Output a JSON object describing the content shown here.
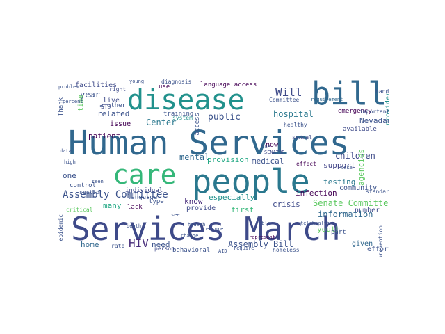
{
  "palette": [
    "#440154",
    "#3b528b",
    "#21918c",
    "#5ec962",
    "#fde725"
  ],
  "words": [
    {
      "text": "Human Services",
      "color": "#31688e"
    },
    {
      "text": "Services March",
      "color": "#3e4a89"
    },
    {
      "text": "people",
      "color": "#2a788e"
    },
    {
      "text": "care",
      "color": "#35b779"
    },
    {
      "text": "disease",
      "color": "#21918c"
    },
    {
      "text": "bill",
      "color": "#31688e"
    },
    {
      "text": "Assembly Committee",
      "color": "#3b528b"
    },
    {
      "text": "Will",
      "color": "#3e4a89"
    },
    {
      "text": "Senate Committee",
      "color": "#5ec962"
    },
    {
      "text": "HIV",
      "color": "#472c7a"
    },
    {
      "text": "Assembly Bill",
      "color": "#3b528b"
    },
    {
      "text": "information",
      "color": "#31688e"
    },
    {
      "text": "children",
      "color": "#3e4a89"
    },
    {
      "text": "public",
      "color": "#3b528b"
    },
    {
      "text": "hospital",
      "color": "#2a788e"
    },
    {
      "text": "mental",
      "color": "#31688e"
    },
    {
      "text": "provision",
      "color": "#22a884"
    },
    {
      "text": "medical",
      "color": "#3b528b"
    },
    {
      "text": "support",
      "color": "#414487"
    },
    {
      "text": "crisis",
      "color": "#3e4a89"
    },
    {
      "text": "infection",
      "color": "#440154"
    },
    {
      "text": "testing",
      "color": "#2a788e"
    },
    {
      "text": "community",
      "color": "#3b528b"
    },
    {
      "text": "especially",
      "color": "#21918c"
    },
    {
      "text": "first",
      "color": "#35b779"
    },
    {
      "text": "know",
      "color": "#472c7a"
    },
    {
      "text": "provide",
      "color": "#3e4a89"
    },
    {
      "text": "need",
      "color": "#3b528b"
    },
    {
      "text": "home",
      "color": "#31688e"
    },
    {
      "text": "patient",
      "color": "#440154"
    },
    {
      "text": "year",
      "color": "#3b528b"
    },
    {
      "text": "Center",
      "color": "#2a788e"
    },
    {
      "text": "related",
      "color": "#3b528b"
    },
    {
      "text": "issue",
      "color": "#440154"
    },
    {
      "text": "facilities",
      "color": "#3e4a89"
    },
    {
      "text": "language access",
      "color": "#440154"
    },
    {
      "text": "Nevadan",
      "color": "#3b528b"
    },
    {
      "text": "available",
      "color": "#3e4a89"
    },
    {
      "text": "emergency",
      "color": "#440154"
    },
    {
      "text": "number",
      "color": "#3e4a89"
    },
    {
      "text": "youth",
      "color": "#5ec962"
    },
    {
      "text": "given",
      "color": "#31688e"
    },
    {
      "text": "effort",
      "color": "#3b528b"
    },
    {
      "text": "many",
      "color": "#22a884"
    },
    {
      "text": "one",
      "color": "#3b528b"
    },
    {
      "text": "behavioral",
      "color": "#3b528b"
    },
    {
      "text": "individual",
      "color": "#3e4a89"
    },
    {
      "text": "language",
      "color": "#3b528b"
    },
    {
      "text": "training",
      "color": "#3b528b"
    },
    {
      "text": "live",
      "color": "#3e4a89"
    },
    {
      "text": "another",
      "color": "#3b528b"
    },
    {
      "text": "use",
      "color": "#440154"
    },
    {
      "text": "right",
      "color": "#3e4a89"
    },
    {
      "text": "now",
      "color": "#440154"
    },
    {
      "text": "lack",
      "color": "#440154"
    },
    {
      "text": "type",
      "color": "#3b528b"
    },
    {
      "text": "critical",
      "color": "#5ec962"
    },
    {
      "text": "rate",
      "color": "#3b528b"
    },
    {
      "text": "person",
      "color": "#3e4a89"
    },
    {
      "text": "agencies",
      "color": "#5ec962"
    },
    {
      "text": "provider",
      "color": "#21918c"
    },
    {
      "text": "control",
      "color": "#3b528b"
    },
    {
      "text": "section",
      "color": "#3b528b"
    },
    {
      "text": "additional",
      "color": "#3b528b"
    },
    {
      "text": "epidemic",
      "color": "#3b528b"
    },
    {
      "text": "STD",
      "color": "#3e4a89"
    },
    {
      "text": "Thank",
      "color": "#3b528b"
    },
    {
      "text": "time",
      "color": "#5ec962"
    },
    {
      "text": "diagnosis",
      "color": "#3b528b"
    },
    {
      "text": "system",
      "color": "#21918c"
    },
    {
      "text": "Committee",
      "color": "#3b528b"
    },
    {
      "text": "requirement",
      "color": "#31688e"
    },
    {
      "text": "important",
      "color": "#3b528b"
    },
    {
      "text": "SENATOR",
      "color": "#3e4a89"
    },
    {
      "text": "telehealth",
      "color": "#3b528b"
    },
    {
      "text": "homeless",
      "color": "#3b528b"
    },
    {
      "text": "represent",
      "color": "#440154"
    },
    {
      "text": "part",
      "color": "#3b528b"
    },
    {
      "text": "prevention",
      "color": "#3b528b"
    },
    {
      "text": "healthy",
      "color": "#3b528b"
    },
    {
      "text": "sexual",
      "color": "#3e4a89"
    },
    {
      "text": "health",
      "color": "#3b528b"
    },
    {
      "text": "change",
      "color": "#3b528b"
    },
    {
      "text": "access",
      "color": "#3b528b"
    },
    {
      "text": "data",
      "color": "#3b528b"
    },
    {
      "text": "percent",
      "color": "#3b528b"
    },
    {
      "text": "high",
      "color": "#3b528b"
    },
    {
      "text": "seen",
      "color": "#3b528b"
    },
    {
      "text": "take",
      "color": "#3b528b"
    },
    {
      "text": "able",
      "color": "#3b528b"
    },
    {
      "text": "death",
      "color": "#3b528b"
    },
    {
      "text": "standard",
      "color": "#3b528b"
    },
    {
      "text": "effect",
      "color": "#440154"
    },
    {
      "text": "require",
      "color": "#3b528b"
    },
    {
      "text": "ensure",
      "color": "#3b528b"
    },
    {
      "text": "due",
      "color": "#3b528b"
    },
    {
      "text": "see",
      "color": "#3b528b"
    },
    {
      "text": "young",
      "color": "#3b528b"
    },
    {
      "text": "problem",
      "color": "#3b528b"
    },
    {
      "text": "hand",
      "color": "#3b528b"
    },
    {
      "text": "AID",
      "color": "#3b528b"
    }
  ]
}
